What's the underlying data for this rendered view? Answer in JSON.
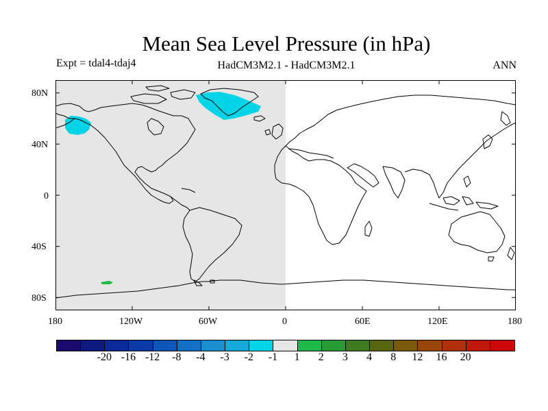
{
  "title": "Mean Sea Level Pressure (in hPa)",
  "experiment_label": "Expt = tdal4-tdaj4",
  "model_label": "HadCM3M2.1 - HadCM3M2.1",
  "period_label": "ANN",
  "lat_ticks": [
    "80N",
    "40N",
    "0",
    "40S",
    "80S"
  ],
  "lon_ticks": [
    "180",
    "120W",
    "60W",
    "0",
    "60E",
    "120E",
    "180"
  ],
  "colors": {
    "missing_region": "#e6e6e6",
    "minus2_to_minus1": "#00d4e6",
    "one_to_two": "#1fb84a",
    "coastline": "#000000"
  },
  "anomaly_regions": [
    {
      "name": "Greenland / North Atlantic",
      "range": "-2 to -1"
    },
    {
      "name": "Bering Sea / Alaska",
      "range": "-2 to -1"
    },
    {
      "name": "South Pacific near Antarctica",
      "range": "1 to 2"
    }
  ],
  "colorbar": {
    "colors": [
      "#1a0a6e",
      "#0e1a80",
      "#0a2a99",
      "#0a3aa8",
      "#0d55b8",
      "#1470c4",
      "#1a8fd0",
      "#15aad8",
      "#00d4e6",
      "#e6e6e6",
      "#1fb84a",
      "#2a9a35",
      "#3e7a1f",
      "#586612",
      "#7a5a0a",
      "#99450a",
      "#b0300a",
      "#c0180a",
      "#cc0808"
    ],
    "labels": [
      "-20",
      "-16",
      "-12",
      "-8",
      "-4",
      "-3",
      "-2",
      "-1",
      "1",
      "2",
      "3",
      "4",
      "8",
      "12",
      "16",
      "20"
    ]
  }
}
